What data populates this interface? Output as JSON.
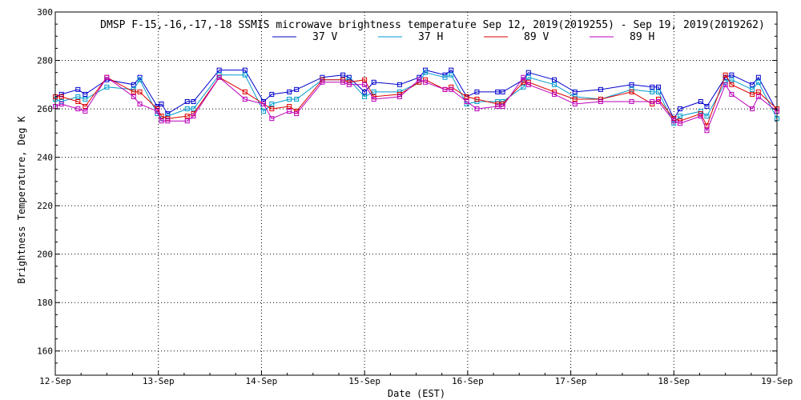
{
  "chart_data": {
    "type": "line",
    "title": "DMSP F-15,-16,-17,-18 SSMIS microwave brightness temperature Sep 12, 2019(2019255) - Sep 19, 2019(2019262)",
    "xlabel": "Date (EST)",
    "ylabel": "Brightness Temperature, Deg K",
    "ylim": [
      150,
      300
    ],
    "xlim": [
      0,
      7
    ],
    "yticks": [
      "160",
      "180",
      "200",
      "220",
      "240",
      "260",
      "280",
      "300"
    ],
    "xticks": [
      "12-Sep",
      "13-Sep",
      "14-Sep",
      "15-Sep",
      "16-Sep",
      "17-Sep",
      "18-Sep",
      "19-Sep"
    ],
    "grid": true,
    "legend_position": "top-center",
    "x": [
      0.0,
      0.06,
      0.22,
      0.29,
      0.5,
      0.76,
      0.82,
      0.99,
      1.03,
      1.09,
      1.28,
      1.34,
      1.59,
      1.84,
      2.02,
      2.1,
      2.27,
      2.34,
      2.59,
      2.79,
      2.85,
      3.0,
      3.09,
      3.34,
      3.53,
      3.59,
      3.78,
      3.84,
      3.99,
      4.09,
      4.29,
      4.34,
      4.54,
      4.59,
      4.84,
      5.04,
      5.29,
      5.59,
      5.79,
      5.85,
      6.0,
      6.06,
      6.26,
      6.32,
      6.5,
      6.56,
      6.76,
      6.82,
      7.0
    ],
    "series": [
      {
        "name": "37 V",
        "color": "#0000cc",
        "values": [
          265,
          266,
          268,
          266,
          272,
          270,
          273,
          261,
          262,
          258,
          263,
          263,
          276,
          276,
          263,
          266,
          267,
          268,
          273,
          274,
          273,
          267,
          271,
          270,
          273,
          276,
          274,
          276,
          265,
          267,
          267,
          267,
          272,
          275,
          272,
          267,
          268,
          270,
          269,
          269,
          256,
          260,
          263,
          261,
          273,
          274,
          270,
          273,
          259
        ]
      },
      {
        "name": "37 H",
        "color": "#0099cc",
        "values": [
          264,
          263,
          265,
          264,
          269,
          268,
          272,
          258,
          256,
          257,
          260,
          260,
          274,
          274,
          259,
          262,
          264,
          264,
          272,
          272,
          272,
          265,
          267,
          267,
          271,
          275,
          273,
          274,
          262,
          263,
          263,
          263,
          269,
          273,
          270,
          265,
          264,
          268,
          267,
          267,
          254,
          257,
          259,
          257,
          271,
          272,
          268,
          271,
          256
        ]
      },
      {
        "name": "89 V",
        "color": "#dd0000",
        "values": [
          265,
          265,
          263,
          261,
          273,
          267,
          267,
          260,
          257,
          256,
          257,
          258,
          273,
          267,
          262,
          260,
          261,
          259,
          272,
          272,
          271,
          272,
          265,
          266,
          271,
          272,
          268,
          269,
          265,
          264,
          262,
          262,
          271,
          271,
          267,
          264,
          264,
          267,
          262,
          264,
          256,
          255,
          258,
          253,
          274,
          270,
          266,
          267,
          260
        ]
      },
      {
        "name": "89 H",
        "color": "#bb00bb",
        "values": [
          261,
          262,
          260,
          259,
          273,
          265,
          262,
          259,
          255,
          255,
          255,
          257,
          273,
          264,
          262,
          256,
          259,
          258,
          271,
          271,
          270,
          270,
          264,
          265,
          272,
          271,
          268,
          268,
          263,
          260,
          261,
          261,
          273,
          270,
          266,
          262,
          263,
          263,
          263,
          263,
          255,
          254,
          257,
          251,
          270,
          266,
          260,
          265,
          259
        ]
      }
    ]
  }
}
